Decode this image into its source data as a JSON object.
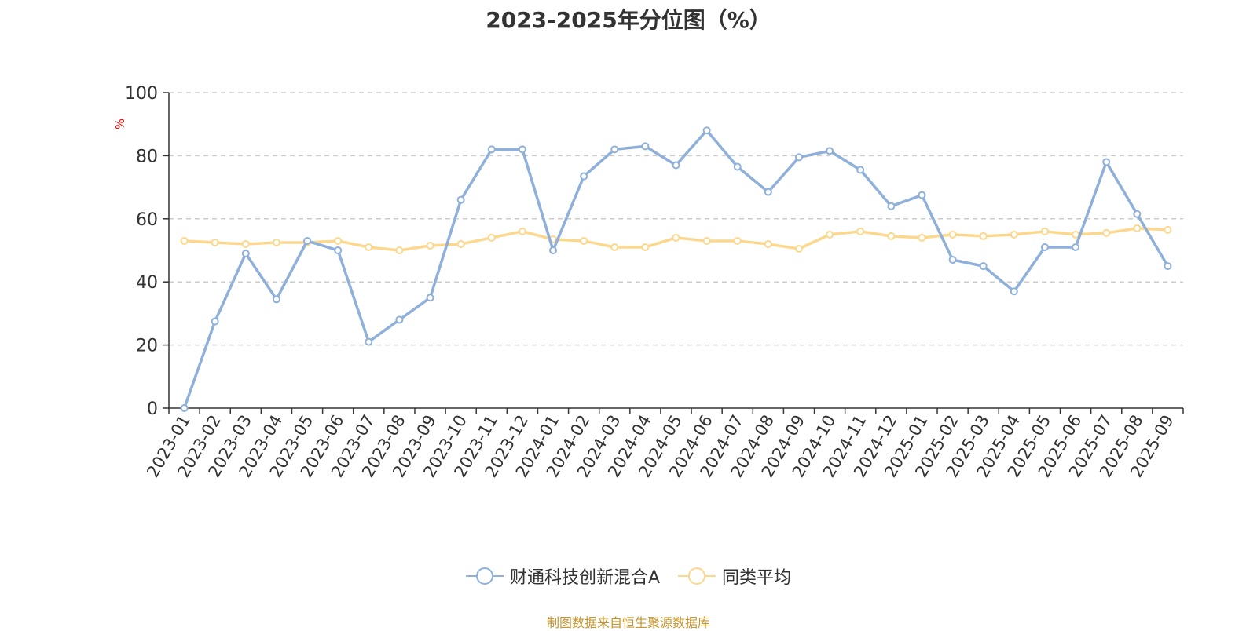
{
  "chart_data": {
    "type": "line",
    "title": "2023-2025年分位图（%）",
    "ylabel": "%",
    "ylim": [
      0,
      100
    ],
    "yticks": [
      0,
      20,
      40,
      60,
      80,
      100
    ],
    "grid": true,
    "legend_position": "bottom",
    "categories": [
      "2023-01",
      "2023-02",
      "2023-03",
      "2023-04",
      "2023-05",
      "2023-06",
      "2023-07",
      "2023-08",
      "2023-09",
      "2023-10",
      "2023-11",
      "2023-12",
      "2024-01",
      "2024-02",
      "2024-03",
      "2024-04",
      "2024-05",
      "2024-06",
      "2024-07",
      "2024-08",
      "2024-09",
      "2024-10",
      "2024-11",
      "2024-12",
      "2025-01",
      "2025-02",
      "2025-03",
      "2025-04",
      "2025-05",
      "2025-06",
      "2025-07",
      "2025-08",
      "2025-09"
    ],
    "series": [
      {
        "name": "财通科技创新混合A",
        "color": "#8eb0da",
        "values": [
          0,
          27.5,
          49,
          34.5,
          53,
          50,
          21,
          28,
          35,
          66,
          82,
          82,
          50,
          73.5,
          82,
          83,
          77,
          88,
          76.5,
          68.5,
          79.5,
          81.5,
          75.5,
          64,
          67.5,
          47,
          45,
          37,
          51,
          51,
          78,
          61.5,
          45
        ]
      },
      {
        "name": "同类平均",
        "color": "#fcd88f",
        "values": [
          53,
          52.5,
          52,
          52.5,
          52.5,
          53,
          51,
          50,
          51.5,
          52,
          54,
          56,
          53.5,
          53,
          51,
          51,
          54,
          53,
          53,
          52,
          50.5,
          55,
          56,
          54.5,
          54,
          55,
          54.5,
          55,
          56,
          55,
          55.5,
          57,
          56.5
        ]
      }
    ]
  },
  "source_note": "制图数据来自恒生聚源数据库"
}
